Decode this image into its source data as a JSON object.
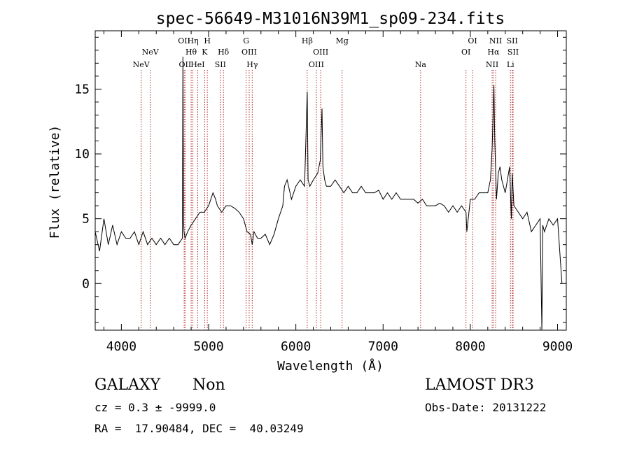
{
  "chart_data": {
    "type": "line",
    "title": "spec-56649-M31016N39M1_sp09-234.fits",
    "xlabel": "Wavelength (Å)",
    "ylabel": "Flux (relative)",
    "xlim": [
      3700,
      9100
    ],
    "ylim": [
      -3.6,
      19.5
    ],
    "x_ticks": [
      4000,
      5000,
      6000,
      7000,
      8000,
      9000
    ],
    "x_tick_labels": [
      "4000",
      "5000",
      "6000",
      "7000",
      "8000",
      "9000"
    ],
    "y_ticks": [
      0,
      5,
      10,
      15
    ],
    "y_tick_labels": [
      "0",
      "5",
      "10",
      "15"
    ],
    "grid": false,
    "line_color": "#000000",
    "marker_color": "#b22222",
    "spectrum": {
      "x": [
        3700,
        3750,
        3800,
        3850,
        3900,
        3950,
        4000,
        4050,
        4100,
        4150,
        4200,
        4250,
        4300,
        4350,
        4400,
        4450,
        4500,
        4550,
        4600,
        4650,
        4700,
        4705,
        4712,
        4718,
        4730,
        4760,
        4800,
        4850,
        4900,
        4950,
        5000,
        5050,
        5080,
        5100,
        5150,
        5200,
        5250,
        5300,
        5350,
        5400,
        5440,
        5480,
        5500,
        5520,
        5560,
        5600,
        5650,
        5700,
        5750,
        5800,
        5850,
        5870,
        5900,
        5950,
        6000,
        6050,
        6100,
        6130,
        6140,
        6160,
        6200,
        6250,
        6280,
        6300,
        6310,
        6330,
        6350,
        6400,
        6450,
        6500,
        6550,
        6600,
        6650,
        6700,
        6750,
        6800,
        6850,
        6900,
        6950,
        7000,
        7050,
        7100,
        7150,
        7200,
        7250,
        7300,
        7350,
        7400,
        7450,
        7500,
        7550,
        7600,
        7650,
        7700,
        7750,
        7800,
        7850,
        7900,
        7950,
        7960,
        8000,
        8050,
        8100,
        8150,
        8200,
        8230,
        8250,
        8270,
        8280,
        8300,
        8320,
        8340,
        8360,
        8400,
        8450,
        8470,
        8480,
        8500,
        8550,
        8600,
        8650,
        8700,
        8750,
        8800,
        8820,
        8830,
        8850,
        8900,
        8950,
        9000,
        9050
      ],
      "y": [
        4.0,
        2.5,
        5.0,
        3.0,
        4.5,
        3.0,
        4.0,
        3.5,
        3.5,
        4.0,
        3.0,
        4.0,
        3.0,
        3.5,
        3.0,
        3.5,
        3.0,
        3.5,
        3.0,
        3.0,
        3.5,
        17.5,
        5.0,
        4.0,
        3.5,
        4.0,
        4.5,
        5.0,
        5.5,
        5.5,
        6.0,
        7.0,
        6.5,
        6.0,
        5.5,
        6.0,
        6.0,
        5.8,
        5.5,
        5.0,
        4.0,
        3.8,
        3.0,
        4.0,
        3.5,
        3.5,
        3.8,
        3.0,
        3.8,
        5.0,
        6.0,
        7.5,
        8.0,
        6.5,
        7.5,
        8.0,
        7.5,
        14.8,
        8.0,
        7.5,
        8.0,
        8.5,
        9.5,
        13.5,
        9.0,
        8.0,
        7.5,
        7.5,
        8.0,
        7.5,
        7.0,
        7.5,
        7.0,
        7.0,
        7.5,
        7.0,
        7.0,
        7.0,
        7.2,
        6.5,
        7.0,
        6.5,
        7.0,
        6.5,
        6.5,
        6.5,
        6.5,
        6.2,
        6.5,
        6.0,
        6.0,
        6.0,
        6.2,
        6.0,
        5.5,
        6.0,
        5.5,
        6.0,
        5.5,
        4.0,
        6.5,
        6.5,
        7.0,
        7.0,
        7.0,
        8.0,
        10.5,
        15.3,
        11.0,
        6.5,
        8.5,
        9.0,
        8.0,
        7.0,
        9.0,
        5.0,
        8.5,
        6.0,
        5.5,
        5.0,
        5.5,
        4.0,
        4.5,
        5.0,
        -3.6,
        4.5,
        4.0,
        5.0,
        4.5,
        5.0,
        0.0
      ]
    },
    "lines": [
      {
        "name": "NeV",
        "wavelength": 4227,
        "row": 3
      },
      {
        "name": "NeV",
        "wavelength": 4331,
        "row": 2
      },
      {
        "name": "OII",
        "wavelength": 4720,
        "row": 1
      },
      {
        "name": "OII",
        "wavelength": 4730,
        "row": 3
      },
      {
        "name": "Hη",
        "wavelength": 4820,
        "row": 1
      },
      {
        "name": "Hθ",
        "wavelength": 4800,
        "row": 2
      },
      {
        "name": "HeI",
        "wavelength": 4875,
        "row": 3
      },
      {
        "name": "H",
        "wavelength": 4985,
        "row": 1
      },
      {
        "name": "K",
        "wavelength": 4955,
        "row": 2
      },
      {
        "name": "Hδ",
        "wavelength": 5170,
        "row": 2
      },
      {
        "name": "SII",
        "wavelength": 5135,
        "row": 3
      },
      {
        "name": "G",
        "wavelength": 5430,
        "row": 1
      },
      {
        "name": "OIII",
        "wavelength": 5465,
        "row": 2
      },
      {
        "name": "Hγ",
        "wavelength": 5500,
        "row": 3
      },
      {
        "name": "Hβ",
        "wavelength": 6130,
        "row": 1
      },
      {
        "name": "OIII",
        "wavelength": 6285,
        "row": 2
      },
      {
        "name": "OIII",
        "wavelength": 6235,
        "row": 3
      },
      {
        "name": "Mg",
        "wavelength": 6530,
        "row": 1
      },
      {
        "name": "Na",
        "wavelength": 7430,
        "row": 3
      },
      {
        "name": "OI",
        "wavelength": 8025,
        "row": 1
      },
      {
        "name": "OI",
        "wavelength": 7950,
        "row": 2
      },
      {
        "name": "NII",
        "wavelength": 8290,
        "row": 1
      },
      {
        "name": "Hα",
        "wavelength": 8265,
        "row": 2
      },
      {
        "name": "NII",
        "wavelength": 8250,
        "row": 3
      },
      {
        "name": "SII",
        "wavelength": 8480,
        "row": 1
      },
      {
        "name": "SII",
        "wavelength": 8490,
        "row": 2
      },
      {
        "name": "Li",
        "wavelength": 8460,
        "row": 3
      }
    ]
  },
  "info": {
    "object_class": "GALAXY",
    "subclass": "Non",
    "survey": "LAMOST DR3",
    "redshift_line": "cz = 0.3 ± -9999.0",
    "obs_date": "Obs-Date: 20131222",
    "coords": "RA =  17.90484, DEC =  40.03249"
  }
}
